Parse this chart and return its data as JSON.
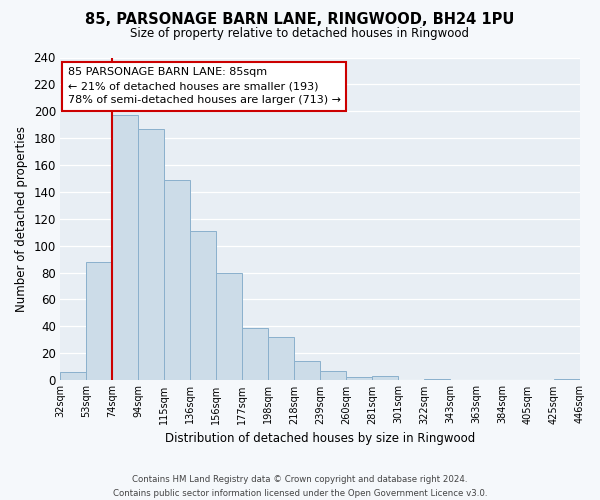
{
  "title": "85, PARSONAGE BARN LANE, RINGWOOD, BH24 1PU",
  "subtitle": "Size of property relative to detached houses in Ringwood",
  "xlabel": "Distribution of detached houses by size in Ringwood",
  "ylabel": "Number of detached properties",
  "bin_labels": [
    "32sqm",
    "53sqm",
    "74sqm",
    "94sqm",
    "115sqm",
    "136sqm",
    "156sqm",
    "177sqm",
    "198sqm",
    "218sqm",
    "239sqm",
    "260sqm",
    "281sqm",
    "301sqm",
    "322sqm",
    "343sqm",
    "363sqm",
    "384sqm",
    "405sqm",
    "425sqm",
    "446sqm"
  ],
  "bar_heights": [
    6,
    88,
    197,
    187,
    149,
    111,
    80,
    39,
    32,
    14,
    7,
    2,
    3,
    0,
    1,
    0,
    0,
    0,
    0,
    1
  ],
  "bar_color": "#ccdce8",
  "bar_edge_color": "#8ab0cc",
  "vline_x": 2,
  "vline_color": "#cc0000",
  "ylim": [
    0,
    240
  ],
  "yticks": [
    0,
    20,
    40,
    60,
    80,
    100,
    120,
    140,
    160,
    180,
    200,
    220,
    240
  ],
  "annotation_line1": "85 PARSONAGE BARN LANE: 85sqm",
  "annotation_line2": "← 21% of detached houses are smaller (193)",
  "annotation_line3": "78% of semi-detached houses are larger (713) →",
  "annotation_box_color": "white",
  "annotation_box_edge": "#cc0000",
  "footer_line1": "Contains HM Land Registry data © Crown copyright and database right 2024.",
  "footer_line2": "Contains public sector information licensed under the Open Government Licence v3.0.",
  "plot_bg_color": "#e8eef4",
  "fig_bg_color": "#f5f8fb"
}
